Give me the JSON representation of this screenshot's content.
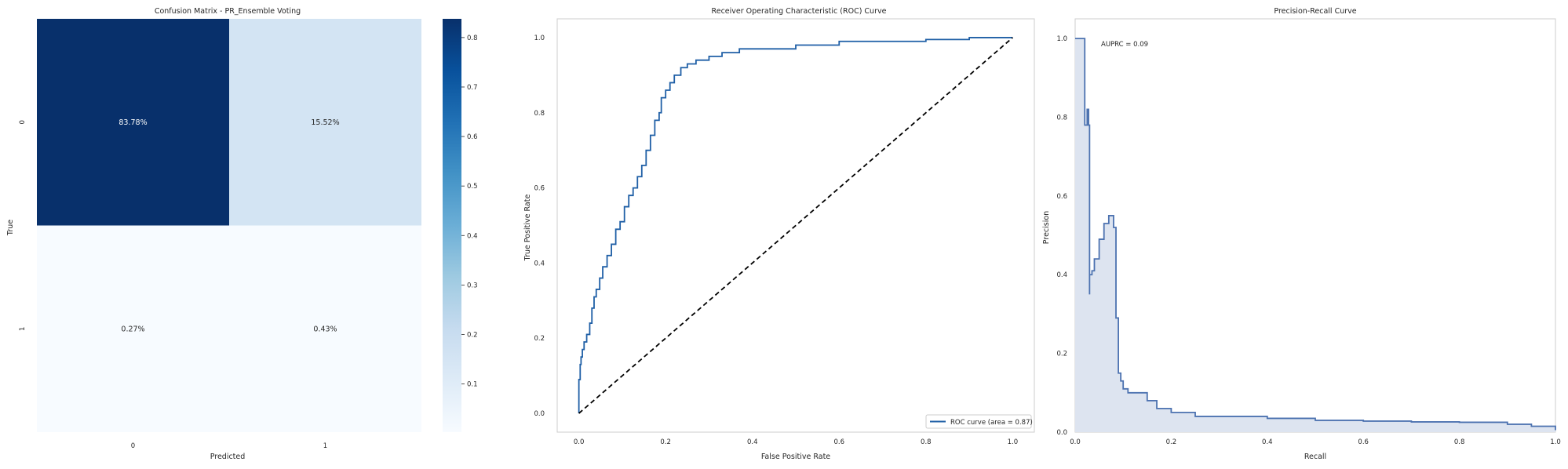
{
  "chart_data": [
    {
      "type": "heatmap",
      "title": "Confusion Matrix - PR_Ensemble Voting",
      "xlabel": "Predicted",
      "ylabel": "True",
      "x_categories": [
        "0",
        "1"
      ],
      "y_categories": [
        "0",
        "1"
      ],
      "values": [
        [
          0.8378,
          0.1552
        ],
        [
          0.0027,
          0.0043
        ]
      ],
      "cell_labels": [
        [
          "83.78%",
          "15.52%"
        ],
        [
          "0.27%",
          "0.43%"
        ]
      ],
      "colormap": "Blues",
      "colorbar": {
        "range": [
          0.0027,
          0.8378
        ],
        "ticks": [
          0.1,
          0.2,
          0.3,
          0.4,
          0.5,
          0.6,
          0.7,
          0.8
        ],
        "tick_labels": [
          "0.1",
          "0.2",
          "0.3",
          "0.4",
          "0.5",
          "0.6",
          "0.7",
          "0.8"
        ]
      },
      "colors": {
        "low": "#f7fbff",
        "high": "#08306b",
        "text_dark": "#262626",
        "text_light": "#ffffff"
      }
    },
    {
      "type": "line",
      "title": "Receiver Operating Characteristic (ROC) Curve",
      "xlabel": "False Positive Rate",
      "ylabel": "True Positive Rate",
      "xlim": [
        -0.05,
        1.05
      ],
      "ylim": [
        -0.05,
        1.05
      ],
      "xticks": [
        "0.0",
        "0.2",
        "0.4",
        "0.6",
        "0.8",
        "1.0"
      ],
      "yticks": [
        "0.0",
        "0.2",
        "0.4",
        "0.6",
        "0.8",
        "1.0"
      ],
      "grid": false,
      "legend_position": "lower-right",
      "series": [
        {
          "name": "ROC curve (area = 0.87)",
          "color": "#1f5fa6",
          "x": [
            0,
            0,
            0.003,
            0.005,
            0.008,
            0.012,
            0.018,
            0.025,
            0.03,
            0.035,
            0.04,
            0.048,
            0.055,
            0.065,
            0.075,
            0.085,
            0.095,
            0.105,
            0.115,
            0.125,
            0.135,
            0.145,
            0.155,
            0.165,
            0.175,
            0.185,
            0.19,
            0.2,
            0.21,
            0.22,
            0.235,
            0.25,
            0.27,
            0.3,
            0.33,
            0.37,
            0.42,
            0.5,
            0.6,
            0.7,
            0.8,
            0.9,
            1.0
          ],
          "y": [
            0,
            0.09,
            0.13,
            0.15,
            0.17,
            0.19,
            0.21,
            0.24,
            0.28,
            0.31,
            0.33,
            0.36,
            0.39,
            0.42,
            0.45,
            0.49,
            0.51,
            0.55,
            0.58,
            0.6,
            0.63,
            0.66,
            0.7,
            0.74,
            0.78,
            0.8,
            0.84,
            0.86,
            0.88,
            0.9,
            0.92,
            0.93,
            0.94,
            0.95,
            0.96,
            0.97,
            0.97,
            0.98,
            0.99,
            0.99,
            0.995,
            1.0,
            1.0
          ]
        },
        {
          "name": "",
          "style": "dashed",
          "color": "#000000",
          "x": [
            0,
            1
          ],
          "y": [
            0,
            1
          ]
        }
      ]
    },
    {
      "type": "area",
      "title": "Precision-Recall Curve",
      "xlabel": "Recall",
      "ylabel": "Precision",
      "xlim": [
        0,
        1
      ],
      "ylim": [
        0,
        1.05
      ],
      "xticks": [
        "0.0",
        "0.2",
        "0.4",
        "0.6",
        "0.8",
        "1.0"
      ],
      "yticks": [
        "0.0",
        "0.2",
        "0.4",
        "0.6",
        "0.8",
        "1.0"
      ],
      "grid": false,
      "annotations": [
        "AUPRC = 0.09"
      ],
      "series": [
        {
          "name": "",
          "step": true,
          "color": "#4c72b0",
          "fill": "#dde4f0",
          "x": [
            0,
            0.02,
            0.02,
            0.025,
            0.028,
            0.03,
            0.03,
            0.035,
            0.04,
            0.05,
            0.06,
            0.07,
            0.075,
            0.08,
            0.085,
            0.09,
            0.09,
            0.095,
            0.1,
            0.11,
            0.13,
            0.15,
            0.17,
            0.2,
            0.25,
            0.3,
            0.4,
            0.5,
            0.6,
            0.7,
            0.8,
            0.9,
            0.95,
            1.0
          ],
          "y": [
            1.0,
            1.0,
            0.78,
            0.82,
            0.78,
            0.35,
            0.4,
            0.41,
            0.44,
            0.49,
            0.53,
            0.55,
            0.55,
            0.52,
            0.29,
            0.17,
            0.15,
            0.13,
            0.11,
            0.1,
            0.1,
            0.08,
            0.06,
            0.05,
            0.04,
            0.04,
            0.035,
            0.03,
            0.028,
            0.026,
            0.025,
            0.02,
            0.015,
            0.005
          ]
        }
      ]
    }
  ]
}
